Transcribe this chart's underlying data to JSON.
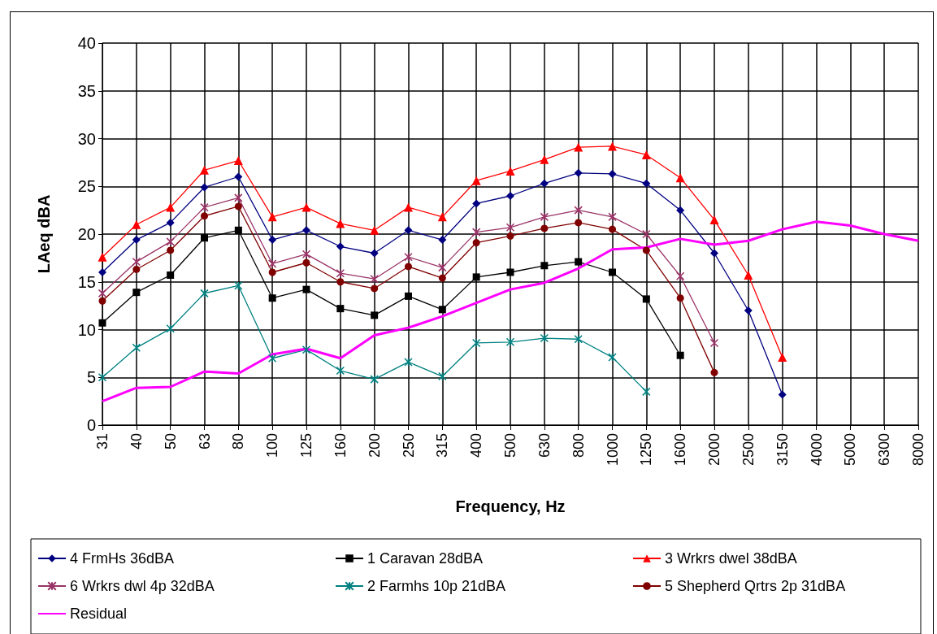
{
  "chart_data": {
    "type": "line",
    "xlabel": "Frequency, Hz",
    "ylabel": "LAeq dBA",
    "categories": [
      "31",
      "40",
      "50",
      "63",
      "80",
      "100",
      "125",
      "160",
      "200",
      "250",
      "315",
      "400",
      "500",
      "630",
      "800",
      "1000",
      "1250",
      "1600",
      "2000",
      "2500",
      "3150",
      "4000",
      "5000",
      "6300",
      "8000"
    ],
    "ylim": [
      0,
      40
    ],
    "yticks": [
      0,
      5,
      10,
      15,
      20,
      25,
      30,
      35,
      40
    ],
    "grid": true,
    "legend": "bottom",
    "series": [
      {
        "name": "4 FrmHs 36dBA",
        "color": "#000080",
        "marker": "diamond",
        "values": [
          16.0,
          19.4,
          21.2,
          24.9,
          26.0,
          19.4,
          20.4,
          18.7,
          18.0,
          20.4,
          19.4,
          23.2,
          24.0,
          25.3,
          26.4,
          26.3,
          25.3,
          22.5,
          18.0,
          12.0,
          3.2,
          null,
          null,
          null,
          null
        ]
      },
      {
        "name": "1 Caravan 28dBA",
        "color": "#000000",
        "marker": "square",
        "values": [
          10.7,
          13.9,
          15.7,
          19.6,
          20.4,
          13.3,
          14.2,
          12.2,
          11.5,
          13.5,
          12.1,
          15.5,
          16.0,
          16.7,
          17.1,
          16.0,
          13.2,
          7.3,
          null,
          null,
          null,
          null,
          null,
          null,
          null
        ]
      },
      {
        "name": "3 Wrkrs dwel 38dBA",
        "color": "#ff0000",
        "marker": "triangle",
        "values": [
          17.6,
          21.0,
          22.8,
          26.7,
          27.7,
          21.8,
          22.8,
          21.1,
          20.4,
          22.8,
          21.8,
          25.6,
          26.6,
          27.8,
          29.1,
          29.2,
          28.3,
          25.9,
          21.5,
          15.7,
          7.1,
          null,
          null,
          null,
          null
        ]
      },
      {
        "name": "6 Wrkrs dwl 4p 32dBA",
        "color": "#993366",
        "marker": "cross",
        "values": [
          13.8,
          17.1,
          19.2,
          22.8,
          23.8,
          16.9,
          17.9,
          15.9,
          15.3,
          17.6,
          16.5,
          20.2,
          20.7,
          21.8,
          22.5,
          21.8,
          20.0,
          15.6,
          8.6,
          null,
          null,
          null,
          null,
          null,
          null
        ]
      },
      {
        "name": "2 Farmhs 10p 21dBA",
        "color": "#008080",
        "marker": "cross",
        "values": [
          5.0,
          8.1,
          10.1,
          13.8,
          14.6,
          7.0,
          7.9,
          5.7,
          4.8,
          6.6,
          5.1,
          8.6,
          8.7,
          9.1,
          9.0,
          7.1,
          3.5,
          null,
          null,
          null,
          null,
          null,
          null,
          null,
          null
        ]
      },
      {
        "name": "5 Shepherd Qrtrs 2p 31dBA",
        "color": "#800000",
        "marker": "circle",
        "values": [
          13.0,
          16.3,
          18.3,
          21.9,
          22.9,
          16.0,
          17.0,
          15.0,
          14.3,
          16.6,
          15.4,
          19.1,
          19.8,
          20.6,
          21.2,
          20.5,
          18.3,
          13.3,
          5.5,
          null,
          null,
          null,
          null,
          null,
          null
        ]
      },
      {
        "name": "Residual",
        "color": "#ff00ff",
        "marker": "none",
        "values": [
          2.5,
          3.9,
          4.0,
          5.6,
          5.4,
          7.4,
          8.0,
          7.0,
          9.4,
          10.2,
          11.4,
          12.8,
          14.2,
          14.9,
          16.4,
          18.4,
          18.6,
          19.5,
          18.9,
          19.3,
          20.5,
          21.3,
          20.9,
          20.0,
          19.3
        ]
      }
    ]
  }
}
